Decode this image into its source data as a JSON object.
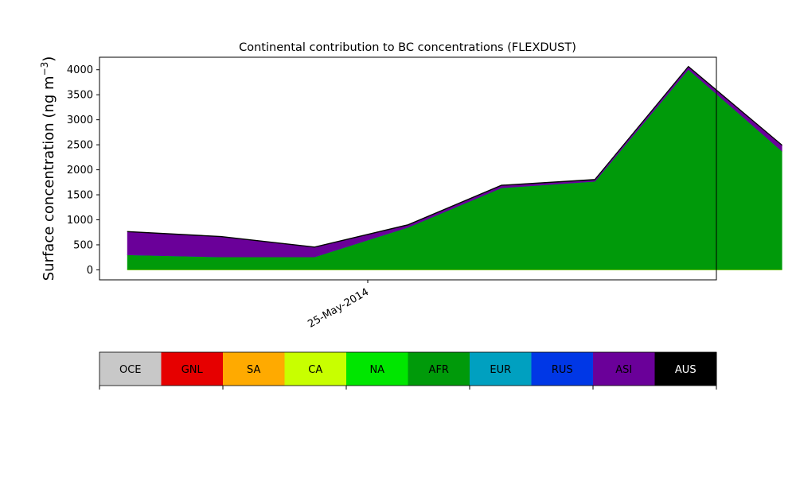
{
  "chart_data": {
    "type": "area",
    "title": "Continental contribution to BC concentrations (FLEXDUST)",
    "ylabel_main": "Surface concentration (ng m",
    "ylabel_sup": "−3",
    "ylabel_close": ")",
    "xlabel": "",
    "ylim": [
      -200,
      4250
    ],
    "xlim": [
      -0.3,
      6.3
    ],
    "yticks": [
      0,
      500,
      1000,
      1500,
      2000,
      2500,
      3000,
      3500,
      4000
    ],
    "xticks": [
      {
        "x": 2.57,
        "label": "25-May-2014"
      }
    ],
    "grid": false,
    "x": [
      0,
      1,
      2,
      3,
      4,
      5,
      6,
      7
    ],
    "series": [
      {
        "name": "OCE",
        "color": "#c8c8c8",
        "values": [
          0,
          0,
          0,
          0,
          0,
          0,
          0,
          0
        ]
      },
      {
        "name": "GNL",
        "color": "#e60000",
        "values": [
          0,
          0,
          0,
          0,
          0,
          0,
          0,
          0
        ]
      },
      {
        "name": "SA",
        "color": "#ffaa00",
        "values": [
          0,
          0,
          0,
          0,
          0,
          0,
          0,
          0
        ]
      },
      {
        "name": "CA",
        "color": "#c8ff00",
        "values": [
          5,
          5,
          5,
          5,
          5,
          5,
          5,
          5
        ]
      },
      {
        "name": "NA",
        "color": "#00e600",
        "values": [
          5,
          5,
          5,
          5,
          5,
          5,
          5,
          5
        ]
      },
      {
        "name": "AFR",
        "color": "#009a0a",
        "values": [
          290,
          250,
          250,
          840,
          1630,
          1760,
          4000,
          2370
        ]
      },
      {
        "name": "EUR",
        "color": "#00a0c0",
        "values": [
          0,
          0,
          0,
          0,
          0,
          0,
          0,
          0
        ]
      },
      {
        "name": "RUS",
        "color": "#0037e6",
        "values": [
          0,
          0,
          0,
          0,
          0,
          0,
          0,
          0
        ]
      },
      {
        "name": "ASI",
        "color": "#6a0099",
        "values": [
          460,
          400,
          190,
          45,
          45,
          30,
          50,
          110
        ]
      },
      {
        "name": "AUS",
        "color": "#000000",
        "values": [
          10,
          10,
          10,
          10,
          10,
          10,
          10,
          10
        ]
      }
    ],
    "legend": {
      "placement": "bottom",
      "labels": [
        "OCE",
        "GNL",
        "SA",
        "CA",
        "NA",
        "AFR",
        "EUR",
        "RUS",
        "ASI",
        "AUS"
      ],
      "colors": [
        "#c8c8c8",
        "#e60000",
        "#ffaa00",
        "#c8ff00",
        "#00e600",
        "#009a0a",
        "#00a0c0",
        "#0037e6",
        "#6a0099",
        "#000000"
      ],
      "label_colors": [
        "#000000",
        "#000000",
        "#000000",
        "#000000",
        "#000000",
        "#000000",
        "#000000",
        "#000000",
        "#000000",
        "#ffffff"
      ]
    }
  }
}
